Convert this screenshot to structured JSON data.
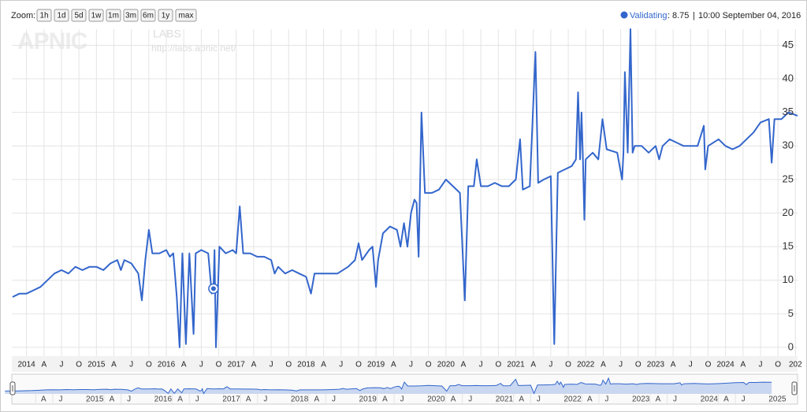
{
  "chart_data": {
    "type": "line",
    "zoom_label": "Zoom:",
    "zoom_buttons": [
      "1h",
      "1d",
      "5d",
      "1w",
      "1m",
      "3m",
      "6m",
      "1y",
      "max"
    ],
    "watermark": {
      "logo": "APNIC",
      "sub": "LABS",
      "url": "http://labs.apnic.net/"
    },
    "legend_separators": [
      ":",
      "|"
    ],
    "highlight": {
      "x": 2016.675,
      "value": 8.75,
      "label": "10:00 September 04, 2016"
    },
    "series": [
      {
        "name": "Validating",
        "color": "#3366cc",
        "values": [
          7.5,
          8,
          8,
          8.5,
          9,
          10,
          11,
          11.5,
          11,
          12,
          11.5,
          12,
          12,
          11.5,
          12.5,
          13,
          11.5,
          13,
          12.5,
          11,
          7,
          13,
          17.5,
          14,
          14,
          14.5,
          13.5,
          14,
          7.5,
          0,
          14,
          0.5,
          14,
          2,
          14,
          14.5,
          14,
          8,
          8.75,
          14.5,
          0,
          15,
          14,
          14.5,
          14,
          21,
          14,
          14,
          13.5,
          13.5,
          13,
          11,
          12,
          11,
          11.5,
          11,
          10.5,
          8,
          11,
          11,
          11,
          12,
          13,
          15.5,
          13,
          14.5,
          15,
          9,
          13,
          17,
          18,
          17.5,
          15,
          18.5,
          15,
          20,
          22,
          21.5,
          13.5,
          35,
          23,
          23,
          23.5,
          25,
          24,
          23,
          7,
          24,
          24,
          28,
          24,
          24,
          24.5,
          24,
          24,
          25,
          31,
          23.5,
          24,
          44,
          24.5,
          25,
          25.5,
          0.5,
          26,
          26.5,
          27,
          28,
          38,
          28,
          35,
          28,
          19,
          28,
          29,
          28,
          34,
          29.5,
          29,
          25,
          29,
          41,
          29,
          47.4,
          29,
          30,
          30,
          29,
          30,
          28,
          30,
          31,
          30.5,
          30,
          30,
          30,
          33,
          26.5,
          30,
          31,
          30,
          29.5,
          30,
          31,
          32,
          33.5,
          34,
          27.5,
          34,
          34,
          35,
          34.5
        ]
      }
    ],
    "x": [
      2013.8,
      2013.9,
      2014.0,
      2014.1,
      2014.2,
      2014.3,
      2014.4,
      2014.5,
      2014.6,
      2014.7,
      2014.8,
      2014.9,
      2015.0,
      2015.1,
      2015.2,
      2015.3,
      2015.35,
      2015.4,
      2015.5,
      2015.6,
      2015.65,
      2015.7,
      2015.75,
      2015.8,
      2015.9,
      2016.0,
      2016.05,
      2016.1,
      2016.15,
      2016.19,
      2016.23,
      2016.28,
      2016.33,
      2016.39,
      2016.42,
      2016.5,
      2016.6,
      2016.65,
      2016.675,
      2016.69,
      2016.71,
      2016.76,
      2016.85,
      2016.95,
      2017.0,
      2017.05,
      2017.1,
      2017.2,
      2017.3,
      2017.4,
      2017.5,
      2017.55,
      2017.6,
      2017.7,
      2017.8,
      2017.9,
      2018.0,
      2018.07,
      2018.12,
      2018.3,
      2018.45,
      2018.6,
      2018.7,
      2018.75,
      2018.8,
      2018.9,
      2018.95,
      2019.0,
      2019.03,
      2019.1,
      2019.2,
      2019.3,
      2019.35,
      2019.4,
      2019.45,
      2019.5,
      2019.55,
      2019.58,
      2019.61,
      2019.65,
      2019.7,
      2019.8,
      2019.9,
      2020.0,
      2020.1,
      2020.2,
      2020.27,
      2020.32,
      2020.4,
      2020.44,
      2020.5,
      2020.6,
      2020.7,
      2020.8,
      2020.9,
      2021.0,
      2021.06,
      2021.1,
      2021.2,
      2021.28,
      2021.32,
      2021.4,
      2021.5,
      2021.55,
      2021.6,
      2021.7,
      2021.8,
      2021.86,
      2021.89,
      2021.92,
      2021.94,
      2021.96,
      2021.98,
      2022.0,
      2022.1,
      2022.18,
      2022.24,
      2022.3,
      2022.45,
      2022.52,
      2022.54,
      2022.56,
      2022.6,
      2022.64,
      2022.67,
      2022.7,
      2022.8,
      2022.9,
      2023.0,
      2023.05,
      2023.1,
      2023.2,
      2023.3,
      2023.4,
      2023.5,
      2023.6,
      2023.69,
      2023.71,
      2023.75,
      2023.9,
      2024.0,
      2024.1,
      2024.2,
      2024.3,
      2024.4,
      2024.5,
      2024.62,
      2024.66,
      2024.7,
      2024.8,
      2024.9,
      2025.03
    ],
    "xlim": [
      2013.79,
      2025.03
    ],
    "ylim": [
      -1.3,
      47.4
    ],
    "yticks": [
      0,
      5,
      10,
      15,
      20,
      25,
      30,
      35,
      40,
      45
    ],
    "grid": true,
    "xticks": [
      2014,
      {
        "value": 2014.25,
        "label": "A"
      },
      {
        "value": 2014.5,
        "label": "J"
      },
      {
        "value": 2014.75,
        "label": "O"
      },
      2015,
      {
        "value": 2015.25,
        "label": "A"
      },
      {
        "value": 2015.5,
        "label": "J"
      },
      {
        "value": 2015.75,
        "label": "O"
      },
      2016,
      {
        "value": 2016.25,
        "label": "A"
      },
      {
        "value": 2016.5,
        "label": "J"
      },
      {
        "value": 2016.75,
        "label": "O"
      },
      2017,
      {
        "value": 2017.25,
        "label": "A"
      },
      {
        "value": 2017.5,
        "label": "J"
      },
      {
        "value": 2017.75,
        "label": "O"
      },
      2018,
      {
        "value": 2018.25,
        "label": "A"
      },
      {
        "value": 2018.5,
        "label": "J"
      },
      {
        "value": 2018.75,
        "label": "O"
      },
      2019,
      {
        "value": 2019.25,
        "label": "A"
      },
      {
        "value": 2019.5,
        "label": "J"
      },
      {
        "value": 2019.75,
        "label": "O"
      },
      2020,
      {
        "value": 2020.25,
        "label": "A"
      },
      {
        "value": 2020.5,
        "label": "J"
      },
      {
        "value": 2020.75,
        "label": "O"
      },
      2021,
      {
        "value": 2021.25,
        "label": "A"
      },
      {
        "value": 2021.5,
        "label": "J"
      },
      {
        "value": 2021.75,
        "label": "O"
      },
      2022,
      {
        "value": 2022.25,
        "label": "A"
      },
      {
        "value": 2022.5,
        "label": "J"
      },
      {
        "value": 2022.75,
        "label": "O"
      },
      2023,
      {
        "value": 2023.25,
        "label": "A"
      },
      {
        "value": 2023.5,
        "label": "J"
      },
      {
        "value": 2023.75,
        "label": "O"
      },
      2024,
      {
        "value": 2024.25,
        "label": "A"
      },
      {
        "value": 2024.5,
        "label": "J"
      },
      {
        "value": 2024.75,
        "label": "O"
      },
      {
        "value": 2025,
        "label": "202"
      }
    ],
    "navigator": {
      "xlim": [
        2013.9,
        2025.41
      ],
      "xticks": [
        {
          "value": 2014.25,
          "label": "A"
        },
        {
          "value": 2014.5,
          "label": "J"
        },
        2015,
        {
          "value": 2015.25,
          "label": "A"
        },
        {
          "value": 2015.5,
          "label": "J"
        },
        2016,
        {
          "value": 2016.25,
          "label": "A"
        },
        {
          "value": 2016.5,
          "label": "J"
        },
        2017,
        {
          "value": 2017.25,
          "label": "A"
        },
        {
          "value": 2017.5,
          "label": "J"
        },
        2018,
        {
          "value": 2018.25,
          "label": "A"
        },
        {
          "value": 2018.5,
          "label": "J"
        },
        2019,
        {
          "value": 2019.25,
          "label": "A"
        },
        {
          "value": 2019.5,
          "label": "J"
        },
        2020,
        {
          "value": 2020.25,
          "label": "A"
        },
        {
          "value": 2020.5,
          "label": "J"
        },
        2021,
        {
          "value": 2021.25,
          "label": "A"
        },
        {
          "value": 2021.5,
          "label": "J"
        },
        2022,
        {
          "value": 2022.25,
          "label": "A"
        },
        {
          "value": 2022.5,
          "label": "J"
        },
        2023,
        {
          "value": 2023.25,
          "label": "A"
        },
        {
          "value": 2023.5,
          "label": "J"
        },
        2024,
        {
          "value": 2024.25,
          "label": "A"
        },
        {
          "value": 2024.5,
          "label": "J"
        },
        2025
      ]
    }
  }
}
